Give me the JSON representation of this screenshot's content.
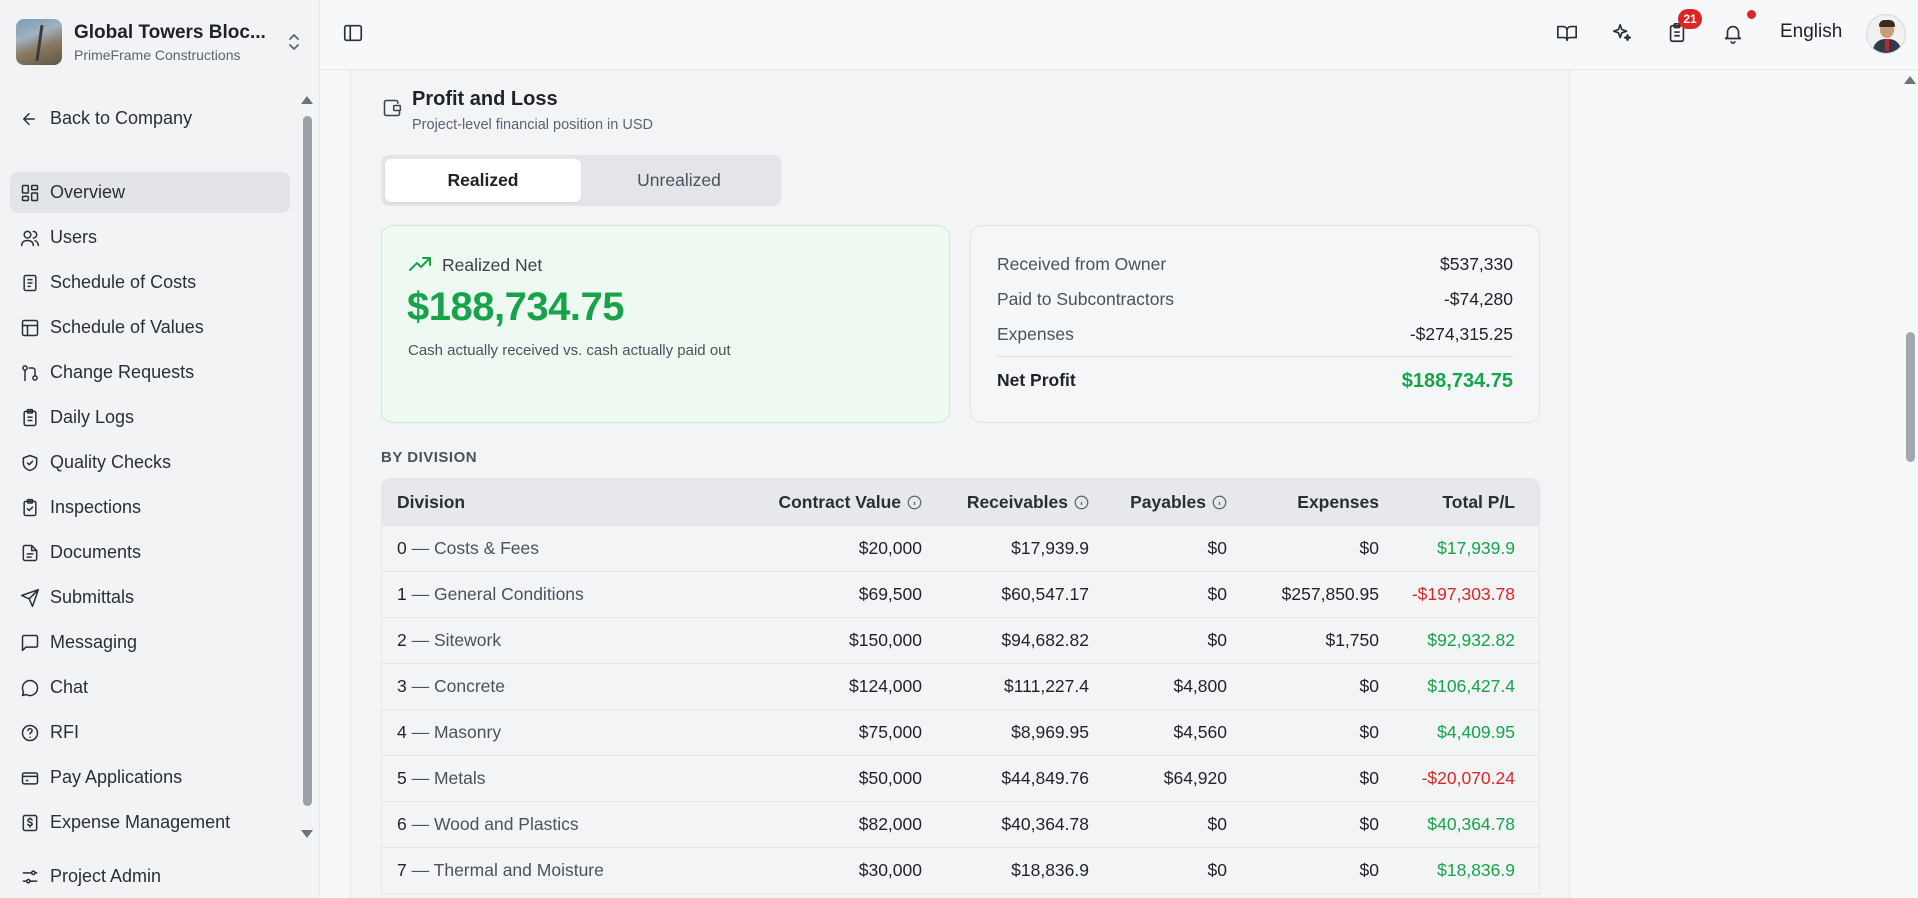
{
  "project": {
    "name": "Global Towers Bloc...",
    "company": "PrimeFrame Constructions"
  },
  "sidebar": {
    "back_label": "Back to Company",
    "items": [
      {
        "label": "Overview",
        "icon": "dashboard-icon"
      },
      {
        "label": "Users",
        "icon": "users-icon"
      },
      {
        "label": "Schedule of Costs",
        "icon": "document-icon"
      },
      {
        "label": "Schedule of Values",
        "icon": "table-icon"
      },
      {
        "label": "Change Requests",
        "icon": "git-pull-icon"
      },
      {
        "label": "Daily Logs",
        "icon": "clipboard-icon"
      },
      {
        "label": "Quality Checks",
        "icon": "shield-check-icon"
      },
      {
        "label": "Inspections",
        "icon": "clipboard-check-icon"
      },
      {
        "label": "Documents",
        "icon": "file-text-icon"
      },
      {
        "label": "Submittals",
        "icon": "send-icon"
      },
      {
        "label": "Messaging",
        "icon": "message-square-icon"
      },
      {
        "label": "Chat",
        "icon": "message-circle-icon"
      },
      {
        "label": "RFI",
        "icon": "help-circle-icon"
      },
      {
        "label": "Pay Applications",
        "icon": "wallet-icon"
      },
      {
        "label": "Expense Management",
        "icon": "receipt-dollar-icon"
      }
    ],
    "footer_label": "Project Admin"
  },
  "header": {
    "task_badge": "21",
    "language": "English"
  },
  "section": {
    "title": "Profit and Loss",
    "subtitle": "Project-level financial position in USD"
  },
  "tabs": {
    "realized": "Realized",
    "unrealized": "Unrealized",
    "active": "realized"
  },
  "net_card": {
    "label": "Realized Net",
    "value": "$188,734.75",
    "description": "Cash actually received vs. cash actually paid out"
  },
  "summary": {
    "received_label": "Received from Owner",
    "received_value": "$537,330",
    "paid_label": "Paid to Subcontractors",
    "paid_value": "-$74,280",
    "expenses_label": "Expenses",
    "expenses_value": "-$274,315.25",
    "net_label": "Net Profit",
    "net_value": "$188,734.75"
  },
  "division_heading": "BY DIVISION",
  "table": {
    "headers": {
      "division": "Division",
      "contract_value": "Contract Value",
      "receivables": "Receivables",
      "payables": "Payables",
      "expenses": "Expenses",
      "total": "Total P/L"
    },
    "rows": [
      {
        "num": "0",
        "name": "— Costs & Fees",
        "cv": "$20,000",
        "rec": "$17,939.9",
        "pay": "$0",
        "exp": "$0",
        "total": "$17,939.9",
        "positive": true
      },
      {
        "num": "1",
        "name": "— General Conditions",
        "cv": "$69,500",
        "rec": "$60,547.17",
        "pay": "$0",
        "exp": "$257,850.95",
        "total": "-$197,303.78",
        "positive": false
      },
      {
        "num": "2",
        "name": "— Sitework",
        "cv": "$150,000",
        "rec": "$94,682.82",
        "pay": "$0",
        "exp": "$1,750",
        "total": "$92,932.82",
        "positive": true
      },
      {
        "num": "3",
        "name": "— Concrete",
        "cv": "$124,000",
        "rec": "$111,227.4",
        "pay": "$4,800",
        "exp": "$0",
        "total": "$106,427.4",
        "positive": true
      },
      {
        "num": "4",
        "name": "— Masonry",
        "cv": "$75,000",
        "rec": "$8,969.95",
        "pay": "$4,560",
        "exp": "$0",
        "total": "$4,409.95",
        "positive": true
      },
      {
        "num": "5",
        "name": "— Metals",
        "cv": "$50,000",
        "rec": "$44,849.76",
        "pay": "$64,920",
        "exp": "$0",
        "total": "-$20,070.24",
        "positive": false
      },
      {
        "num": "6",
        "name": "— Wood and Plastics",
        "cv": "$82,000",
        "rec": "$40,364.78",
        "pay": "$0",
        "exp": "$0",
        "total": "$40,364.78",
        "positive": true
      },
      {
        "num": "7",
        "name": "— Thermal and Moisture",
        "cv": "$30,000",
        "rec": "$18,836.9",
        "pay": "$0",
        "exp": "$0",
        "total": "$18,836.9",
        "positive": true
      }
    ]
  },
  "colors": {
    "positive": "#16a34a",
    "negative": "#dc2626",
    "badge": "#dc2626"
  }
}
